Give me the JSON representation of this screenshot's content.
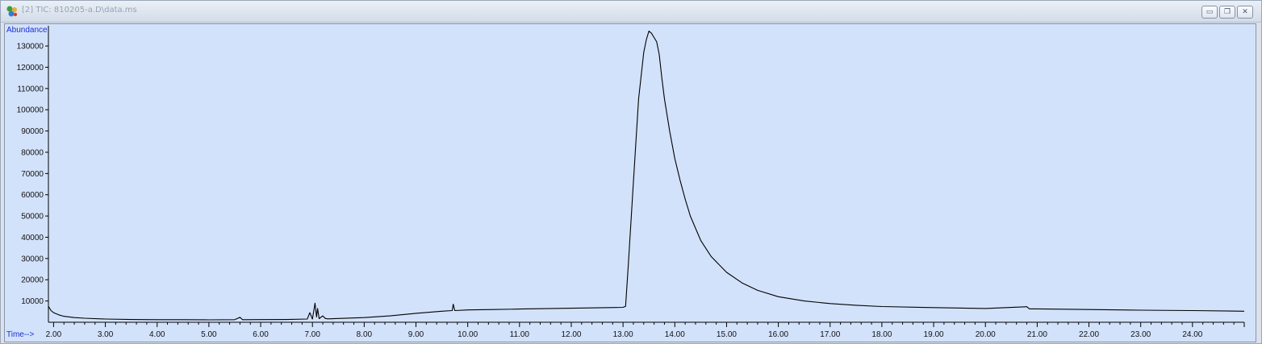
{
  "window": {
    "title": "[2] TIC: 810205-a.D\\data.ms",
    "app_icon": "chemstation-data-icon",
    "buttons": [
      {
        "name": "minimize-button",
        "glyph": "▭"
      },
      {
        "name": "restore-button",
        "glyph": "❐"
      },
      {
        "name": "close-button",
        "glyph": "✕"
      }
    ]
  },
  "colors": {
    "plot_background": "#d3e2fb",
    "trace": "#000000",
    "axis_title": "#1a2fd0"
  },
  "chart_data": {
    "type": "line",
    "title": "",
    "xlabel": "Time-->",
    "ylabel": "Abundance",
    "xlim": [
      1.9,
      25.0
    ],
    "ylim": [
      0,
      138000
    ],
    "x_ticks": [
      "2.00",
      "3.00",
      "4.00",
      "5.00",
      "6.00",
      "7.00",
      "8.00",
      "9.00",
      "10.00",
      "11.00",
      "12.00",
      "13.00",
      "14.00",
      "15.00",
      "16.00",
      "17.00",
      "18.00",
      "19.00",
      "20.00",
      "21.00",
      "22.00",
      "23.00",
      "24.00"
    ],
    "y_ticks": [
      "10000",
      "20000",
      "30000",
      "40000",
      "50000",
      "60000",
      "70000",
      "80000",
      "90000",
      "100000",
      "110000",
      "120000",
      "130000"
    ],
    "grid": false,
    "series": [
      {
        "x": [
          1.9,
          1.95,
          2.0,
          2.1,
          2.2,
          2.4,
          2.6,
          3.0,
          3.5,
          4.0,
          4.5,
          5.0,
          5.5,
          5.6,
          5.65,
          5.7,
          6.0,
          6.5,
          6.9,
          6.95,
          7.0,
          7.05,
          7.08,
          7.1,
          7.13,
          7.2,
          7.25,
          7.3,
          7.5,
          8.0,
          8.5,
          9.0,
          9.5,
          9.7,
          9.72,
          9.75,
          10.0,
          10.5,
          11.0,
          11.5,
          12.0,
          12.5,
          13.0,
          13.05,
          13.1,
          13.2,
          13.3,
          13.4,
          13.45,
          13.5,
          13.55,
          13.6,
          13.65,
          13.7,
          13.75,
          13.8,
          13.9,
          14.0,
          14.1,
          14.2,
          14.3,
          14.5,
          14.7,
          15.0,
          15.3,
          15.6,
          16.0,
          16.5,
          17.0,
          17.5,
          18.0,
          19.0,
          20.0,
          20.8,
          20.85,
          21.0,
          22.0,
          23.0,
          24.0,
          25.0
        ],
        "y": [
          7500,
          5500,
          4500,
          3500,
          2800,
          2200,
          1900,
          1500,
          1300,
          1200,
          1200,
          1150,
          1200,
          2300,
          1200,
          1200,
          1250,
          1300,
          1500,
          4500,
          1500,
          9000,
          2500,
          6500,
          1700,
          3000,
          1800,
          1600,
          1800,
          2200,
          3000,
          4200,
          5200,
          5500,
          8500,
          5500,
          5800,
          6000,
          6200,
          6400,
          6600,
          6800,
          7000,
          7500,
          26000,
          66000,
          105000,
          127000,
          133000,
          137000,
          136000,
          134000,
          132000,
          126000,
          115000,
          105000,
          90000,
          77000,
          67000,
          58000,
          50000,
          38500,
          31000,
          23500,
          18500,
          15000,
          12000,
          10000,
          8800,
          8000,
          7400,
          6900,
          6500,
          7300,
          6300,
          6300,
          6000,
          5700,
          5500,
          5200
        ]
      }
    ]
  }
}
